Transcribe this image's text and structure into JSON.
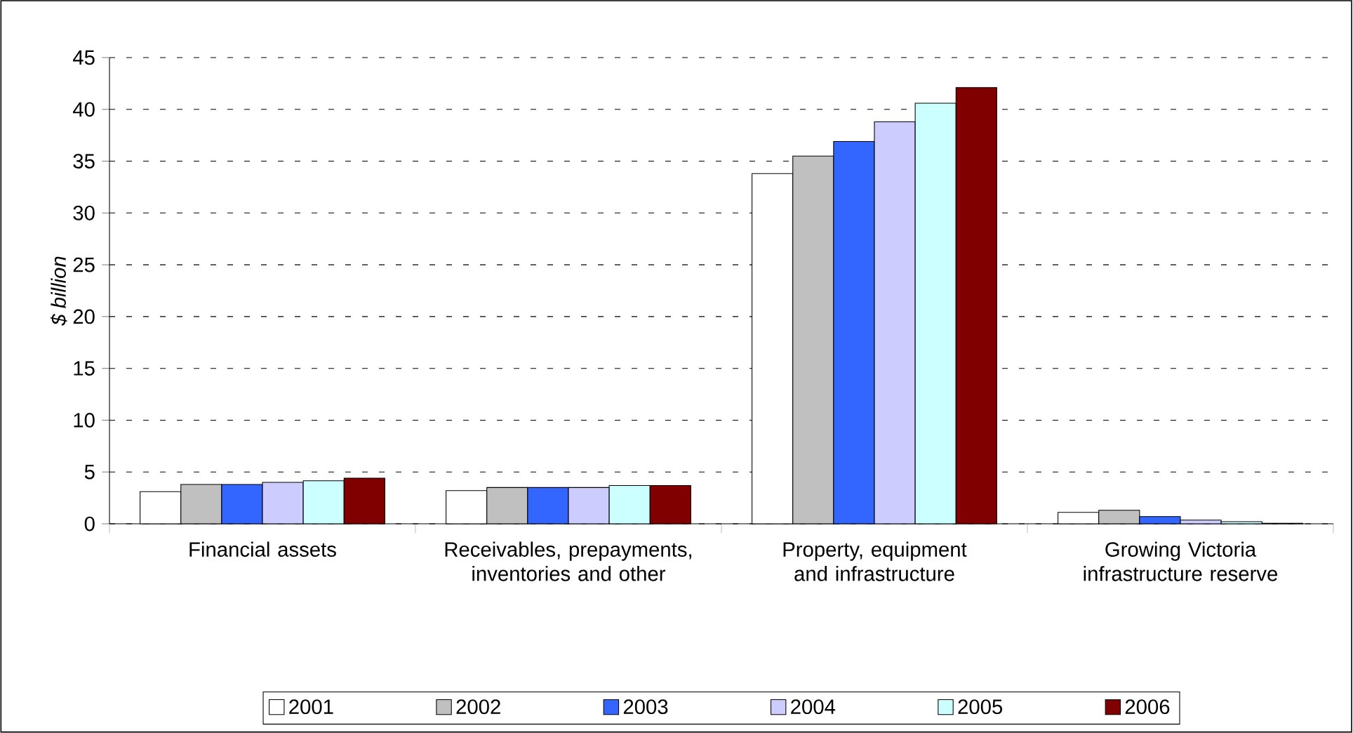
{
  "chart_data": {
    "type": "bar",
    "ylabel": "$ billion",
    "categories": [
      "Financial assets",
      "Receivables, prepayments, inventories and other",
      "Property, equipment and infrastructure",
      "Growing Victoria infrastructure reserve"
    ],
    "series": [
      {
        "name": "2001",
        "color": "#ffffff",
        "values": [
          3.1,
          3.2,
          33.8,
          1.1
        ]
      },
      {
        "name": "2002",
        "color": "#c0c0c0",
        "values": [
          3.8,
          3.5,
          35.5,
          1.3
        ]
      },
      {
        "name": "2003",
        "color": "#3366ff",
        "values": [
          3.8,
          3.5,
          36.9,
          0.7
        ]
      },
      {
        "name": "2004",
        "color": "#ccccff",
        "values": [
          4.0,
          3.5,
          38.8,
          0.35
        ]
      },
      {
        "name": "2005",
        "color": "#ccffff",
        "values": [
          4.15,
          3.7,
          40.6,
          0.2
        ]
      },
      {
        "name": "2006",
        "color": "#800000",
        "values": [
          4.4,
          3.7,
          42.1,
          0.05
        ]
      }
    ],
    "ylim": [
      0,
      45
    ],
    "yticks": [
      0,
      5,
      10,
      15,
      20,
      25,
      30,
      35,
      40,
      45
    ],
    "grid": "y",
    "legend": "bottom"
  }
}
